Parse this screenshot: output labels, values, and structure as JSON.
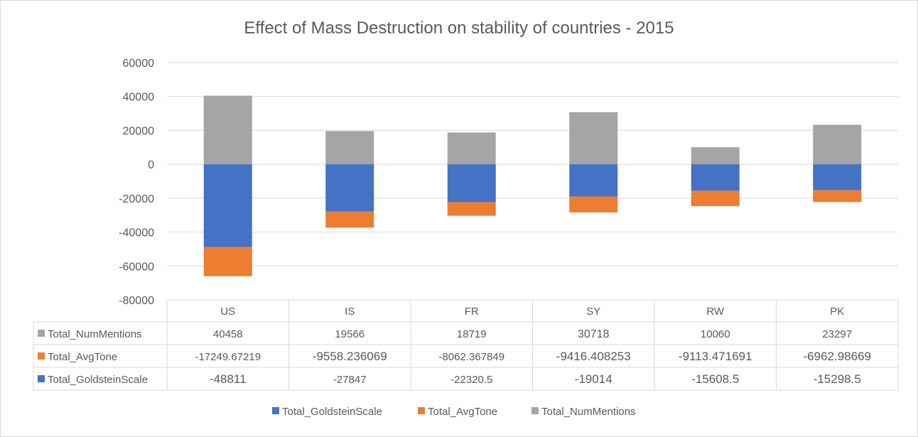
{
  "chart_data": {
    "type": "bar",
    "stacked": true,
    "title": "Effect of Mass Destruction on stability of countries - 2015",
    "xlabel": "",
    "ylabel": "",
    "categories": [
      "US",
      "IS",
      "FR",
      "SY",
      "RW",
      "PK"
    ],
    "ylim": [
      -80000,
      60000
    ],
    "yticks": [
      60000,
      40000,
      20000,
      0,
      -20000,
      -40000,
      -60000,
      -80000
    ],
    "grid": true,
    "legend_position": "bottom",
    "data_table": true,
    "series": [
      {
        "name": "Total_GoldsteinScale",
        "color": "#4472c4",
        "values": [
          -48811,
          -27847,
          -22320.5,
          -19014,
          -15608.5,
          -15298.5
        ],
        "labels": [
          "-48811",
          "-27847",
          "-22320.5",
          "-19014",
          "-15608.5",
          "-15298.5"
        ]
      },
      {
        "name": "Total_AvgTone",
        "color": "#ed7d31",
        "values": [
          -17249.67219,
          -9558.236069,
          -8062.367849,
          -9416.408253,
          -9113.471691,
          -6962.98669
        ],
        "labels": [
          "-17249.67219",
          "-9558.236069",
          "-8062.367849",
          "-9416.408253",
          "-9113.471691",
          "-6962.98669"
        ]
      },
      {
        "name": "Total_NumMentions",
        "color": "#a5a5a5",
        "values": [
          40458,
          19566,
          18719,
          30718,
          10060,
          23297
        ],
        "labels": [
          "40458",
          "19566",
          "18719",
          "30718",
          "10060",
          "23297"
        ]
      }
    ]
  }
}
